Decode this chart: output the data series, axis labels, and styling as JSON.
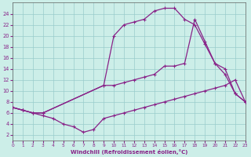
{
  "xlabel": "Windchill (Refroidissement éolien,°C)",
  "bg_color": "#cceee8",
  "line_color": "#882288",
  "grid_color": "#99cccc",
  "xlim": [
    0,
    23
  ],
  "ylim": [
    1,
    26
  ],
  "xticks": [
    0,
    1,
    2,
    3,
    4,
    5,
    6,
    7,
    8,
    9,
    10,
    11,
    12,
    13,
    14,
    15,
    16,
    17,
    18,
    19,
    20,
    21,
    22,
    23
  ],
  "yticks": [
    2,
    4,
    6,
    8,
    10,
    12,
    14,
    16,
    18,
    20,
    22,
    24
  ],
  "curve_top_x": [
    0,
    1,
    2,
    3,
    9,
    10,
    11,
    12,
    13,
    14,
    15,
    16,
    17,
    18,
    19,
    20,
    21,
    22,
    23
  ],
  "curve_top_y": [
    7,
    6.5,
    6,
    6,
    11,
    20,
    22,
    22.5,
    23,
    24.5,
    25,
    25,
    23,
    22,
    18.5,
    15,
    13,
    9.5,
    8
  ],
  "curve_mid_x": [
    0,
    1,
    2,
    3,
    9,
    10,
    11,
    12,
    13,
    14,
    15,
    16,
    17,
    18,
    19,
    20,
    21,
    22,
    23
  ],
  "curve_mid_y": [
    7,
    6.5,
    6,
    6,
    11,
    11,
    11.5,
    12,
    12.5,
    13,
    14.5,
    14.5,
    15,
    23,
    19,
    15,
    14,
    9.5,
    8
  ],
  "curve_bot_x": [
    0,
    1,
    2,
    3,
    4,
    5,
    6,
    7,
    8,
    9,
    10,
    11,
    12,
    13,
    14,
    15,
    16,
    17,
    18,
    19,
    20,
    21,
    22,
    23
  ],
  "curve_bot_y": [
    7,
    6.5,
    6,
    5.5,
    5,
    4,
    3.5,
    2.5,
    3,
    5,
    5.5,
    6,
    6.5,
    7,
    7.5,
    8,
    8.5,
    9,
    9.5,
    10,
    10.5,
    11,
    12,
    8
  ]
}
